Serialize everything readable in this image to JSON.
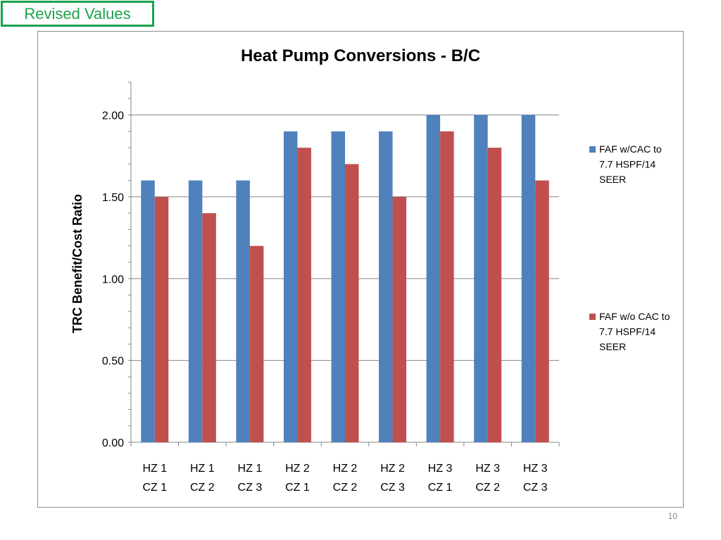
{
  "badge": {
    "label": "Revised Values"
  },
  "page": {
    "number": "10"
  },
  "colors": {
    "series1": "#4f81bd",
    "series2": "#c0504d",
    "gridline": "#868686",
    "badge": "#1aa34a"
  },
  "chart_data": {
    "type": "bar",
    "title": "Heat Pump Conversions - B/C",
    "xlabel": "",
    "ylabel": "TRC Benefit/Cost Ratio",
    "ylim": [
      0,
      2.2
    ],
    "yticks": [
      "0.00",
      "0.50",
      "1.00",
      "1.50",
      "2.00"
    ],
    "grid": true,
    "legend_position": "right",
    "categories": [
      [
        "HZ 1",
        "CZ 1"
      ],
      [
        "HZ 1",
        "CZ 2"
      ],
      [
        "HZ 1",
        "CZ 3"
      ],
      [
        "HZ 2",
        "CZ 1"
      ],
      [
        "HZ 2",
        "CZ 2"
      ],
      [
        "HZ 2",
        "CZ 3"
      ],
      [
        "HZ 3",
        "CZ 1"
      ],
      [
        "HZ 3",
        "CZ 2"
      ],
      [
        "HZ 3",
        "CZ 3"
      ]
    ],
    "series": [
      {
        "name_lines": [
          "FAF w/CAC to",
          "7.7 HSPF/14",
          "SEER"
        ],
        "color": "#4f81bd",
        "values": [
          1.6,
          1.6,
          1.6,
          1.9,
          1.9,
          1.9,
          2.0,
          2.0,
          2.0
        ]
      },
      {
        "name_lines": [
          "FAF w/o CAC to",
          "7.7 HSPF/14",
          "SEER"
        ],
        "color": "#c0504d",
        "values": [
          1.5,
          1.4,
          1.2,
          1.8,
          1.7,
          1.5,
          1.9,
          1.8,
          1.6
        ]
      }
    ]
  }
}
